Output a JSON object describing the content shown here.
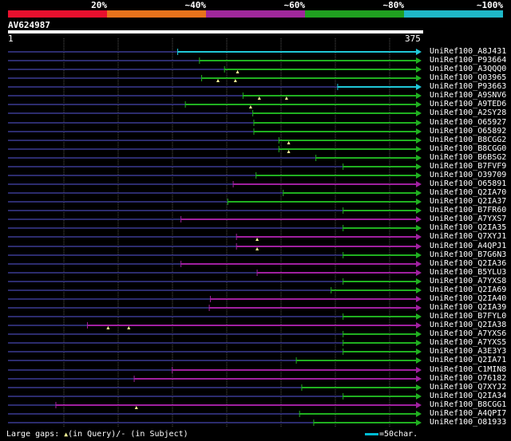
{
  "scale": {
    "labels": [
      "20%",
      "~40%",
      "~60%",
      "~80%",
      "~100%"
    ],
    "colors": [
      "#e8102e",
      "#e8731c",
      "#a0289c",
      "#20a020",
      "#1fb8c8"
    ]
  },
  "query": {
    "id": "AV624987",
    "start": "1",
    "end": "375",
    "length": 375
  },
  "hits": [
    {
      "name": "UniRef100_A8J431",
      "start": 156,
      "color": "cyan",
      "ticks": []
    },
    {
      "name": "UniRef100_P93664",
      "start": 176,
      "color": "green",
      "ticks": []
    },
    {
      "name": "UniRef100_A3QQQ0",
      "start": 199,
      "color": "green",
      "ticks": [
        211
      ]
    },
    {
      "name": "UniRef100_Q03965",
      "start": 178,
      "color": "green",
      "ticks": [
        193,
        209
      ]
    },
    {
      "name": "UniRef100_P93663",
      "start": 303,
      "color": "cyan",
      "ticks": []
    },
    {
      "name": "UniRef100_A9SNV6",
      "start": 216,
      "color": "green",
      "ticks": [
        231,
        256
      ]
    },
    {
      "name": "UniRef100_A9TED6",
      "start": 163,
      "color": "green",
      "ticks": [
        223
      ]
    },
    {
      "name": "UniRef100_A2SY28",
      "start": 225,
      "color": "green",
      "ticks": []
    },
    {
      "name": "UniRef100_O65927",
      "start": 226,
      "color": "green",
      "ticks": []
    },
    {
      "name": "UniRef100_O65892",
      "start": 226,
      "color": "green",
      "ticks": []
    },
    {
      "name": "UniRef100_B8CGG2",
      "start": 249,
      "color": "green",
      "ticks": [
        258
      ]
    },
    {
      "name": "UniRef100_B8CGG0",
      "start": 249,
      "color": "green",
      "ticks": [
        258
      ]
    },
    {
      "name": "UniRef100_B6BSG2",
      "start": 283,
      "color": "green",
      "ticks": []
    },
    {
      "name": "UniRef100_B7FVF9",
      "start": 308,
      "color": "green",
      "ticks": []
    },
    {
      "name": "UniRef100_O39709",
      "start": 228,
      "color": "green",
      "ticks": []
    },
    {
      "name": "UniRef100_O65891",
      "start": 207,
      "color": "purple",
      "ticks": []
    },
    {
      "name": "UniRef100_Q2IA70",
      "start": 253,
      "color": "green",
      "ticks": []
    },
    {
      "name": "UniRef100_Q2IA37",
      "start": 202,
      "color": "green",
      "ticks": []
    },
    {
      "name": "UniRef100_B7FR60",
      "start": 308,
      "color": "green",
      "ticks": []
    },
    {
      "name": "UniRef100_A7YXS7",
      "start": 159,
      "color": "purple",
      "ticks": []
    },
    {
      "name": "UniRef100_Q2IA35",
      "start": 308,
      "color": "green",
      "ticks": []
    },
    {
      "name": "UniRef100_Q7XYJ1",
      "start": 210,
      "color": "purple",
      "ticks": [
        229
      ]
    },
    {
      "name": "UniRef100_A4QPJ1",
      "start": 210,
      "color": "purple",
      "ticks": [
        229
      ]
    },
    {
      "name": "UniRef100_B7G6N3",
      "start": 308,
      "color": "green",
      "ticks": []
    },
    {
      "name": "UniRef100_Q2IA36",
      "start": 159,
      "color": "purple",
      "ticks": []
    },
    {
      "name": "UniRef100_B5YLU3",
      "start": 229,
      "color": "purple",
      "ticks": []
    },
    {
      "name": "UniRef100_A7YXS8",
      "start": 308,
      "color": "green",
      "ticks": []
    },
    {
      "name": "UniRef100_Q2IA69",
      "start": 297,
      "color": "green",
      "ticks": []
    },
    {
      "name": "UniRef100_Q2IA40",
      "start": 186,
      "color": "purple",
      "ticks": []
    },
    {
      "name": "UniRef100_Q2IA39",
      "start": 185,
      "color": "purple",
      "ticks": []
    },
    {
      "name": "UniRef100_B7FYL0",
      "start": 308,
      "color": "green",
      "ticks": []
    },
    {
      "name": "UniRef100_Q2IA38",
      "start": 73,
      "color": "purple",
      "ticks": [
        92,
        111
      ]
    },
    {
      "name": "UniRef100_A7YXS6",
      "start": 308,
      "color": "green",
      "ticks": []
    },
    {
      "name": "UniRef100_A7YXS5",
      "start": 308,
      "color": "green",
      "ticks": []
    },
    {
      "name": "UniRef100_A3E3Y3",
      "start": 308,
      "color": "green",
      "ticks": []
    },
    {
      "name": "UniRef100_Q2IA71",
      "start": 265,
      "color": "green",
      "ticks": []
    },
    {
      "name": "UniRef100_C1MIN8",
      "start": 151,
      "color": "purple",
      "ticks": []
    },
    {
      "name": "UniRef100_O76182",
      "start": 116,
      "color": "purple",
      "ticks": []
    },
    {
      "name": "UniRef100_Q7XYJ2",
      "start": 270,
      "color": "green",
      "ticks": []
    },
    {
      "name": "UniRef100_Q2IA34",
      "start": 308,
      "color": "green",
      "ticks": []
    },
    {
      "name": "UniRef100_B8CGG1",
      "start": 44,
      "color": "purple",
      "ticks": [
        118
      ]
    },
    {
      "name": "UniRef100_A4QPI7",
      "start": 268,
      "color": "green",
      "ticks": []
    },
    {
      "name": "UniRef100_O81933",
      "start": 281,
      "color": "green",
      "ticks": []
    }
  ],
  "palette": {
    "green": "#20b020",
    "purple": "#a020a0",
    "cyan": "#20c8d8",
    "navy": "#2c2c6e",
    "tick": "#ffff99",
    "grid": "#555555"
  },
  "footer": {
    "legend_prefix": "Large gaps:",
    "in_query": "(in Query)/",
    "dash_mark": "-",
    "in_subject": " (in Subject)",
    "scale_legend": "=50char."
  }
}
